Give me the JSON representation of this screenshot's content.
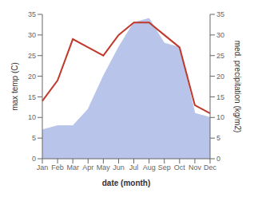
{
  "chart_data": {
    "type": "line",
    "categories": [
      "Jan",
      "Feb",
      "Mar",
      "Apr",
      "May",
      "Jun",
      "Jul",
      "Aug",
      "Sep",
      "Oct",
      "Nov",
      "Dec"
    ],
    "xlabel": "date (month)",
    "ylabel": "max temp (C)",
    "y2label": "med. precipitation (kg/m2)",
    "ylim": [
      0,
      35
    ],
    "yticks": [
      0,
      5,
      10,
      15,
      20,
      25,
      30,
      35
    ],
    "y2lim": [
      0,
      35
    ],
    "y2ticks": [
      0,
      5,
      10,
      15,
      20,
      25,
      30,
      35
    ],
    "grid": false,
    "series": [
      {
        "type": "area",
        "axis": "y2",
        "color": "#b8c4ea",
        "values": [
          7,
          8,
          8,
          12,
          20,
          27,
          33,
          34,
          28,
          27,
          11,
          10
        ]
      },
      {
        "type": "line",
        "color": "#c0392b",
        "values": [
          14,
          19,
          29,
          27,
          25,
          30,
          33,
          33,
          30,
          27,
          13,
          11
        ]
      }
    ]
  }
}
